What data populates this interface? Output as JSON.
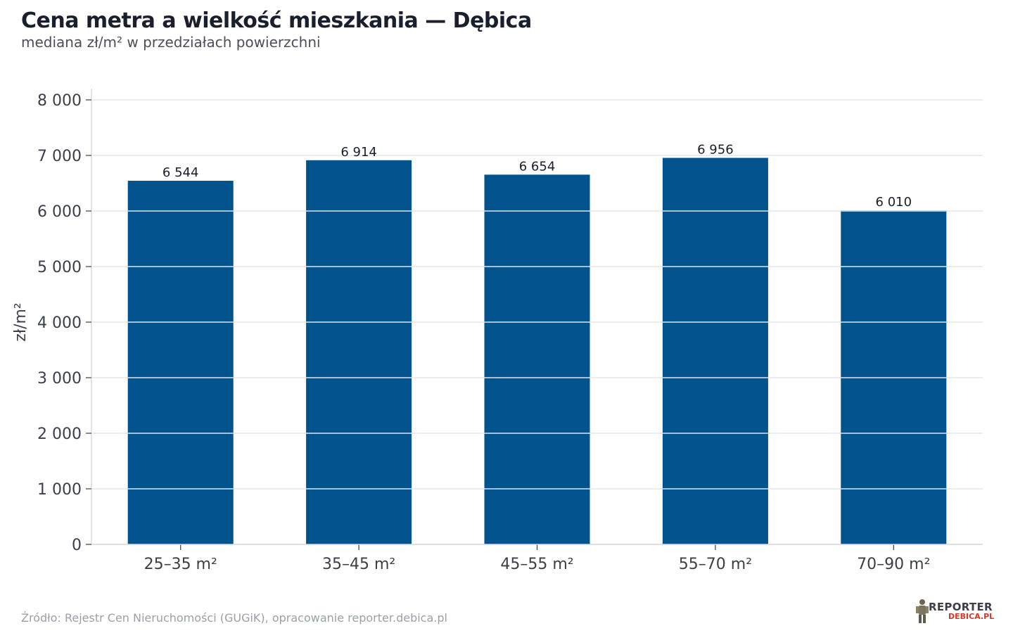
{
  "header": {
    "title": "Cena metra a wielkość mieszkania — Dębica",
    "subtitle": "mediana zł/m² w przedziałach powierzchni"
  },
  "footer": {
    "source": "Źródło: Rejestr Cen Nieruchomości (GUGiK), opracowanie reporter.debica.pl"
  },
  "logo": {
    "line1": "REPORTER",
    "line2": "DEBICA.PL"
  },
  "colors": {
    "bar": "#00538c",
    "grid": "#e3e5e8",
    "axis_text": "#3a3f4a"
  },
  "chart_data": {
    "type": "bar",
    "title": "Cena metra a wielkość mieszkania — Dębica",
    "subtitle": "mediana zł/m² w przedziałach powierzchni",
    "xlabel": "",
    "ylabel": "zł/m²",
    "categories": [
      "25–35 m²",
      "35–45 m²",
      "45–55 m²",
      "55–70 m²",
      "70–90 m²"
    ],
    "values": [
      6544,
      6914,
      6654,
      6956,
      6010
    ],
    "value_labels": [
      "6 544",
      "6 914",
      "6 654",
      "6 956",
      "6 010"
    ],
    "ylim": [
      0,
      8000
    ],
    "yticks": [
      0,
      1000,
      2000,
      3000,
      4000,
      5000,
      6000,
      7000,
      8000
    ],
    "ytick_labels": [
      "0",
      "1 000",
      "2 000",
      "3 000",
      "4 000",
      "5 000",
      "6 000",
      "7 000",
      "8 000"
    ],
    "grid": true,
    "legend": "none"
  }
}
